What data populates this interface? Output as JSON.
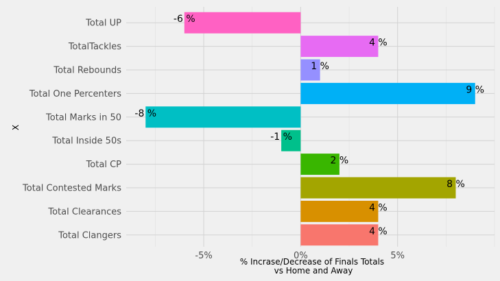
{
  "chart_data": {
    "type": "bar",
    "orientation": "horizontal",
    "title": "",
    "xlabel": "% Incrase/Decrease of Finals Totals vs Home and Away",
    "xlabel_lines": [
      "% Incrase/Decrease of Finals Totals",
      "vs Home and Away"
    ],
    "ylabel": "X",
    "xlim": [
      -9,
      10
    ],
    "x_ticks": [
      {
        "value": -5,
        "label": "-5%"
      },
      {
        "value": 0,
        "label": "0%"
      },
      {
        "value": 5,
        "label": "5%"
      }
    ],
    "grid": true,
    "legend": "none",
    "categories": [
      "Total UP",
      "TotalTackles",
      "Total Rebounds",
      "Total One Percenters",
      "Total Marks in 50",
      "Total Inside 50s",
      "Total CP",
      "Total Contested Marks",
      "Total Clearances",
      "Total Clangers"
    ],
    "values": [
      -6,
      4,
      1,
      9,
      -8,
      -1,
      2,
      8,
      4,
      4
    ],
    "bar_values": [
      -6.0,
      4.0,
      1.0,
      9.0,
      -8.0,
      -1.0,
      2.0,
      8.0,
      4.0,
      4.0
    ],
    "data_labels": [
      "-6 %",
      "4 %",
      "1 %",
      "9 %",
      "-8 %",
      "-1 %",
      "2 %",
      "8 %",
      "4 %",
      "4 %"
    ],
    "colors": [
      "#ff61c3",
      "#e76bf3",
      "#9590ff",
      "#00b0f6",
      "#00bfc4",
      "#00c08b",
      "#39b600",
      "#a3a500",
      "#d89000",
      "#f8766d"
    ]
  }
}
